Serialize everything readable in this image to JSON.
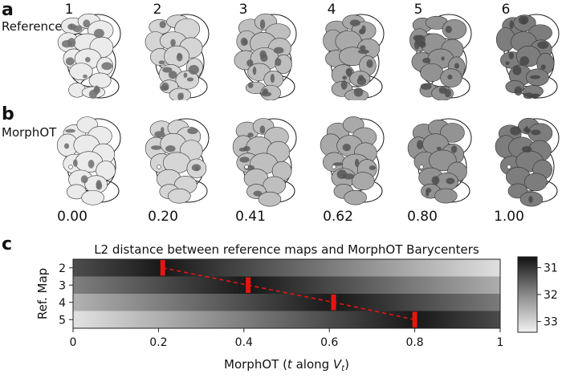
{
  "panels": {
    "a": {
      "letter": "a",
      "row_label": "Reference",
      "columns": [
        "1",
        "2",
        "3",
        "4",
        "5",
        "6"
      ]
    },
    "b": {
      "letter": "b",
      "row_label": "MorphOT",
      "t_values": [
        "0.00",
        "0.20",
        "0.41",
        "0.62",
        "0.80",
        "1.00"
      ]
    },
    "c": {
      "letter": "c"
    }
  },
  "chart_data": {
    "type": "heatmap",
    "title": "L2 distance between reference maps and MorphOT Barycenters",
    "xlabel": "MorphOT (t along V_t)",
    "ylabel": "Ref. Map",
    "x_ticks": [
      "0",
      "0.2",
      "0.4",
      "0.6",
      "0.8",
      "1"
    ],
    "xlim": [
      0,
      1
    ],
    "rows": [
      "2",
      "3",
      "4",
      "5"
    ],
    "minima": [
      {
        "ref_map": "2",
        "t": 0.21
      },
      {
        "ref_map": "3",
        "t": 0.41
      },
      {
        "ref_map": "4",
        "t": 0.61
      },
      {
        "ref_map": "5",
        "t": 0.8
      }
    ],
    "colorbar": {
      "ticks": [
        "31",
        "32",
        "33"
      ],
      "range": [
        30.6,
        33.4
      ],
      "colormap": "gray_r"
    },
    "colors": {
      "marker": "#e8140f",
      "trace": "#e8140f"
    }
  }
}
